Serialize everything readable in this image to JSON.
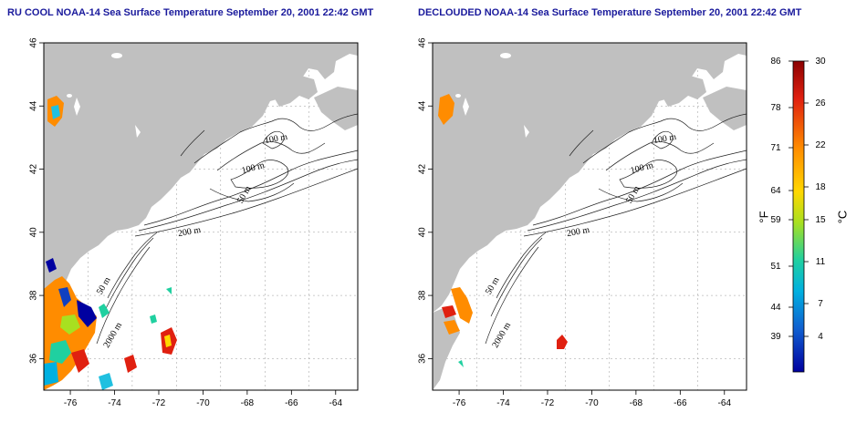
{
  "maps": [
    {
      "title": "RU COOL NOAA-14 Sea Surface Temperature September 20, 2001 22:42 GMT"
    },
    {
      "title": "DECLOUDED NOAA-14 Sea Surface Temperature September 20, 2001 22:42 GMT"
    }
  ],
  "axes": {
    "lon_ticks": [
      "-76",
      "-74",
      "-72",
      "-70",
      "-68",
      "-66",
      "-64"
    ],
    "lat_ticks": [
      "46",
      "44",
      "42",
      "40",
      "38",
      "36"
    ],
    "lon_range": [
      -77.2,
      -63.0
    ],
    "lat_range": [
      35.0,
      46.0
    ]
  },
  "isobath_labels": [
    "100 m",
    "100 m",
    "50 m",
    "200 m",
    "50 m",
    "2000 m"
  ],
  "colorbar": {
    "fahrenheit_ticks": [
      "86",
      "78",
      "71",
      "64",
      "59",
      "51",
      "44",
      "39"
    ],
    "celsius_ticks": [
      "30",
      "26",
      "22",
      "18",
      "15",
      "11",
      "7",
      "4"
    ],
    "fahrenheit_label": "°F",
    "celsius_label": "°C",
    "colors": [
      "#8b0000",
      "#e02010",
      "#ff8c00",
      "#ffd700",
      "#a8e020",
      "#20d0a0",
      "#00b0e0",
      "#1060d0",
      "#0000a0"
    ]
  }
}
